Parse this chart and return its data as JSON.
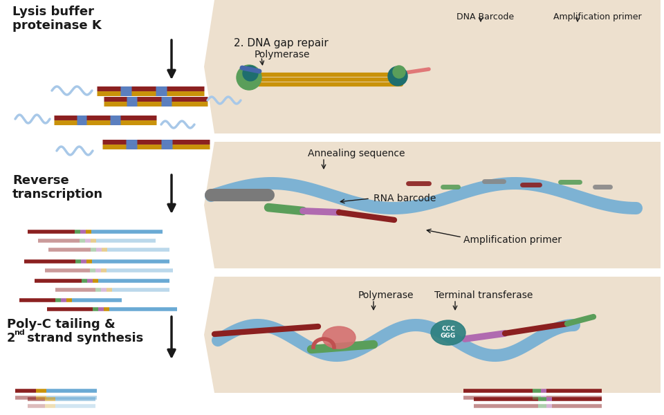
{
  "bg_color": "#ffffff",
  "panel_bg": "#ede0ce",
  "text_color": "#1a1a1a",
  "arrow_color": "#1a1a1a",
  "dna_gold": "#c9920a",
  "dna_dark_red": "#8b2020",
  "dna_blue_sq": "#5a7fc0",
  "rna_blue": "#6aaad4",
  "rna_wavy_color": "#a8c8e8",
  "green_color": "#5a9e5a",
  "purple_color": "#b06ab0",
  "pink_color": "#e07878",
  "teal_color": "#2e8080",
  "gray_color": "#888888",
  "labels": {
    "lysis": "Lysis buffer\nproteinase K",
    "reverse": "Reverse\ntranscription",
    "poly_c_line1": "Poly-C tailing &",
    "poly_c_line2": "strand synthesis",
    "dna_gap": "2. DNA gap repair",
    "polymerase": "Polymerase",
    "annealing": "Annealing sequence",
    "rna_barcode": "RNA barcode",
    "amp_primer": "Amplification primer",
    "amp_primer2": "Amplification primer",
    "dna_barcode": "DNA Barcode",
    "polymerase2": "Polymerase",
    "terminal": "Terminal transferase"
  },
  "figsize": [
    9.6,
    6.0
  ],
  "dpi": 100
}
